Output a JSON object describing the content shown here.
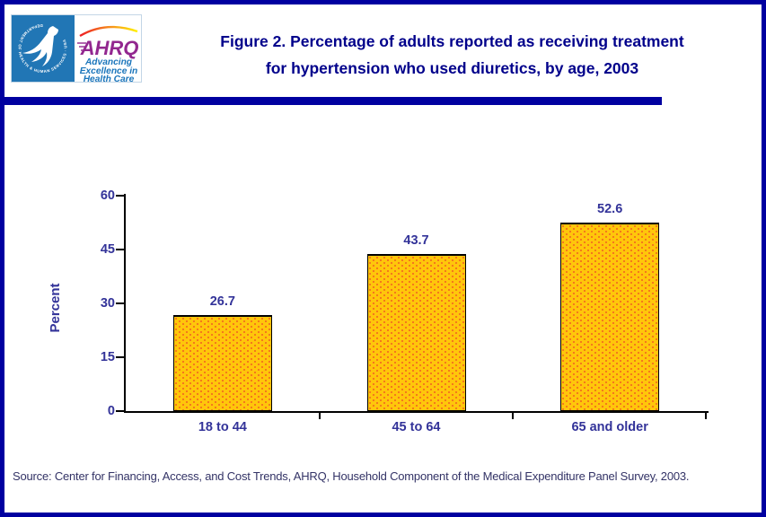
{
  "logo": {
    "hhs_seal_text": "DEPARTMENT OF HEALTH & HUMAN SERVICES · USA",
    "ahrq_acronym": "AHRQ",
    "ahrq_tagline_lines": [
      "Advancing",
      "Excellence in",
      "Health Care"
    ]
  },
  "header": {
    "title_lines": [
      "Figure 2. Percentage of adults reported as receiving treatment",
      "for hypertension who used diuretics, by age, 2003"
    ]
  },
  "chart_data": {
    "type": "bar",
    "title": "Figure 2. Percentage of adults reported as receiving treatment for hypertension who used diuretics, by age, 2003",
    "categories": [
      "18 to 44",
      "45 to 64",
      "65 and older"
    ],
    "values": [
      26.7,
      43.7,
      52.6
    ],
    "value_labels": [
      "26.7",
      "43.7",
      "52.6"
    ],
    "xlabel": "",
    "ylabel": "Percent",
    "ylim": [
      0,
      60
    ],
    "yticks": [
      0,
      15,
      30,
      45,
      60
    ],
    "grid": false,
    "legend": null,
    "bar_fill_color": "#FFC60B",
    "bar_dot_color": "#F4701D",
    "bar_border_color": "#000000",
    "label_color": "#333399"
  },
  "footer": {
    "source": "Source: Center for Financing, Access, and Cost Trends, AHRQ, Household Component of the Medical Expenditure Panel Survey, 2003."
  },
  "colors": {
    "page_border": "#0000A0",
    "divider_bar": "#0000A0",
    "title_text": "#00008B",
    "hhs_blue": "#2176B5",
    "ahrq_purple": "#92278F",
    "tagline_blue": "#1A75BB"
  }
}
